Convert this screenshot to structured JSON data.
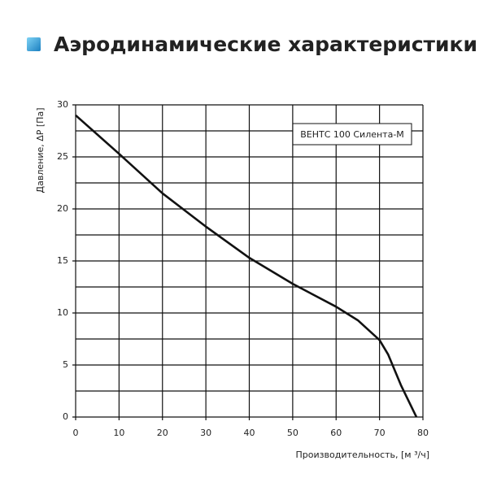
{
  "chart_data": {
    "type": "line",
    "title": "Аэродинамические характеристики",
    "xlabel": "Производительность, [м ³/ч]",
    "ylabel": "Давление, ΔP [Па]",
    "series": [
      {
        "name": "ВЕНТС 100 Силента-М",
        "color": "#111111",
        "x": [
          0,
          10,
          20,
          30,
          40,
          50,
          60,
          65,
          70,
          72,
          75,
          78.5
        ],
        "values": [
          29,
          25.3,
          21.5,
          18.3,
          15.3,
          12.8,
          10.6,
          9.3,
          7.4,
          6,
          3,
          0
        ]
      }
    ],
    "xlim": [
      0,
      80
    ],
    "ylim": [
      0,
      30
    ],
    "xticks": [
      0,
      10,
      20,
      30,
      40,
      50,
      60,
      70,
      80
    ],
    "yticks": [
      0,
      5,
      10,
      15,
      20,
      25,
      30
    ],
    "minor_yticks": [
      2.5,
      7.5,
      12.5,
      17.5,
      22.5,
      27.5
    ],
    "grid": true,
    "legend": "upper right"
  }
}
